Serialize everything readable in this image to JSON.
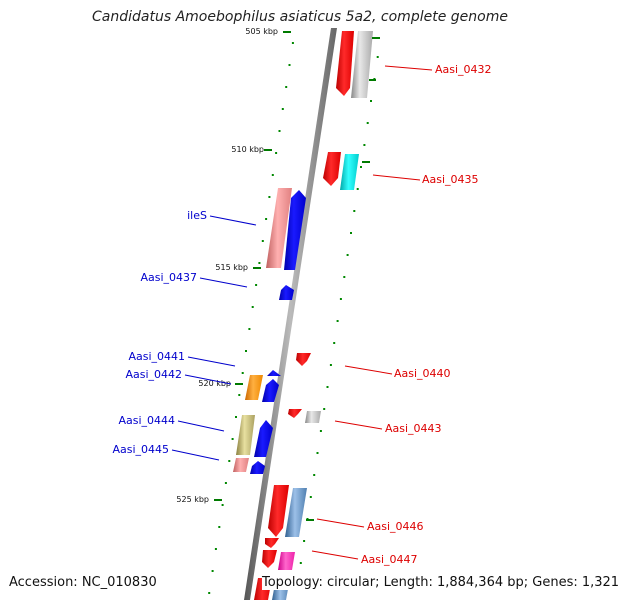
{
  "title": "Candidatus Amoebophilus asiaticus 5a2, complete genome",
  "ruler": [
    {
      "label": "505 kbp"
    },
    {
      "label": "510 kbp"
    },
    {
      "label": "515 kbp"
    },
    {
      "label": "520 kbp"
    },
    {
      "label": "525 kbp"
    }
  ],
  "genes": {
    "forward": [
      {
        "name": "Aasi_0432",
        "color": "#dd0000"
      },
      {
        "name": "Aasi_0435",
        "color": "#dd0000"
      },
      {
        "name": "Aasi_0440",
        "color": "#dd0000"
      },
      {
        "name": "Aasi_0443",
        "color": "#dd0000"
      },
      {
        "name": "Aasi_0446",
        "color": "#dd0000"
      },
      {
        "name": "Aasi_0447",
        "color": "#dd0000"
      }
    ],
    "reverse": [
      {
        "name": "ileS",
        "color": "#0000cc"
      },
      {
        "name": "Aasi_0437",
        "color": "#0000cc"
      },
      {
        "name": "Aasi_0441",
        "color": "#0000cc"
      },
      {
        "name": "Aasi_0442",
        "color": "#0000cc"
      },
      {
        "name": "Aasi_0444",
        "color": "#0000cc"
      },
      {
        "name": "Aasi_0445",
        "color": "#0000cc"
      }
    ]
  },
  "footer": {
    "accession": "Accession: NC_010830",
    "stats": "Topology: circular; Length: 1,884,364 bp; Genes: 1,321"
  }
}
